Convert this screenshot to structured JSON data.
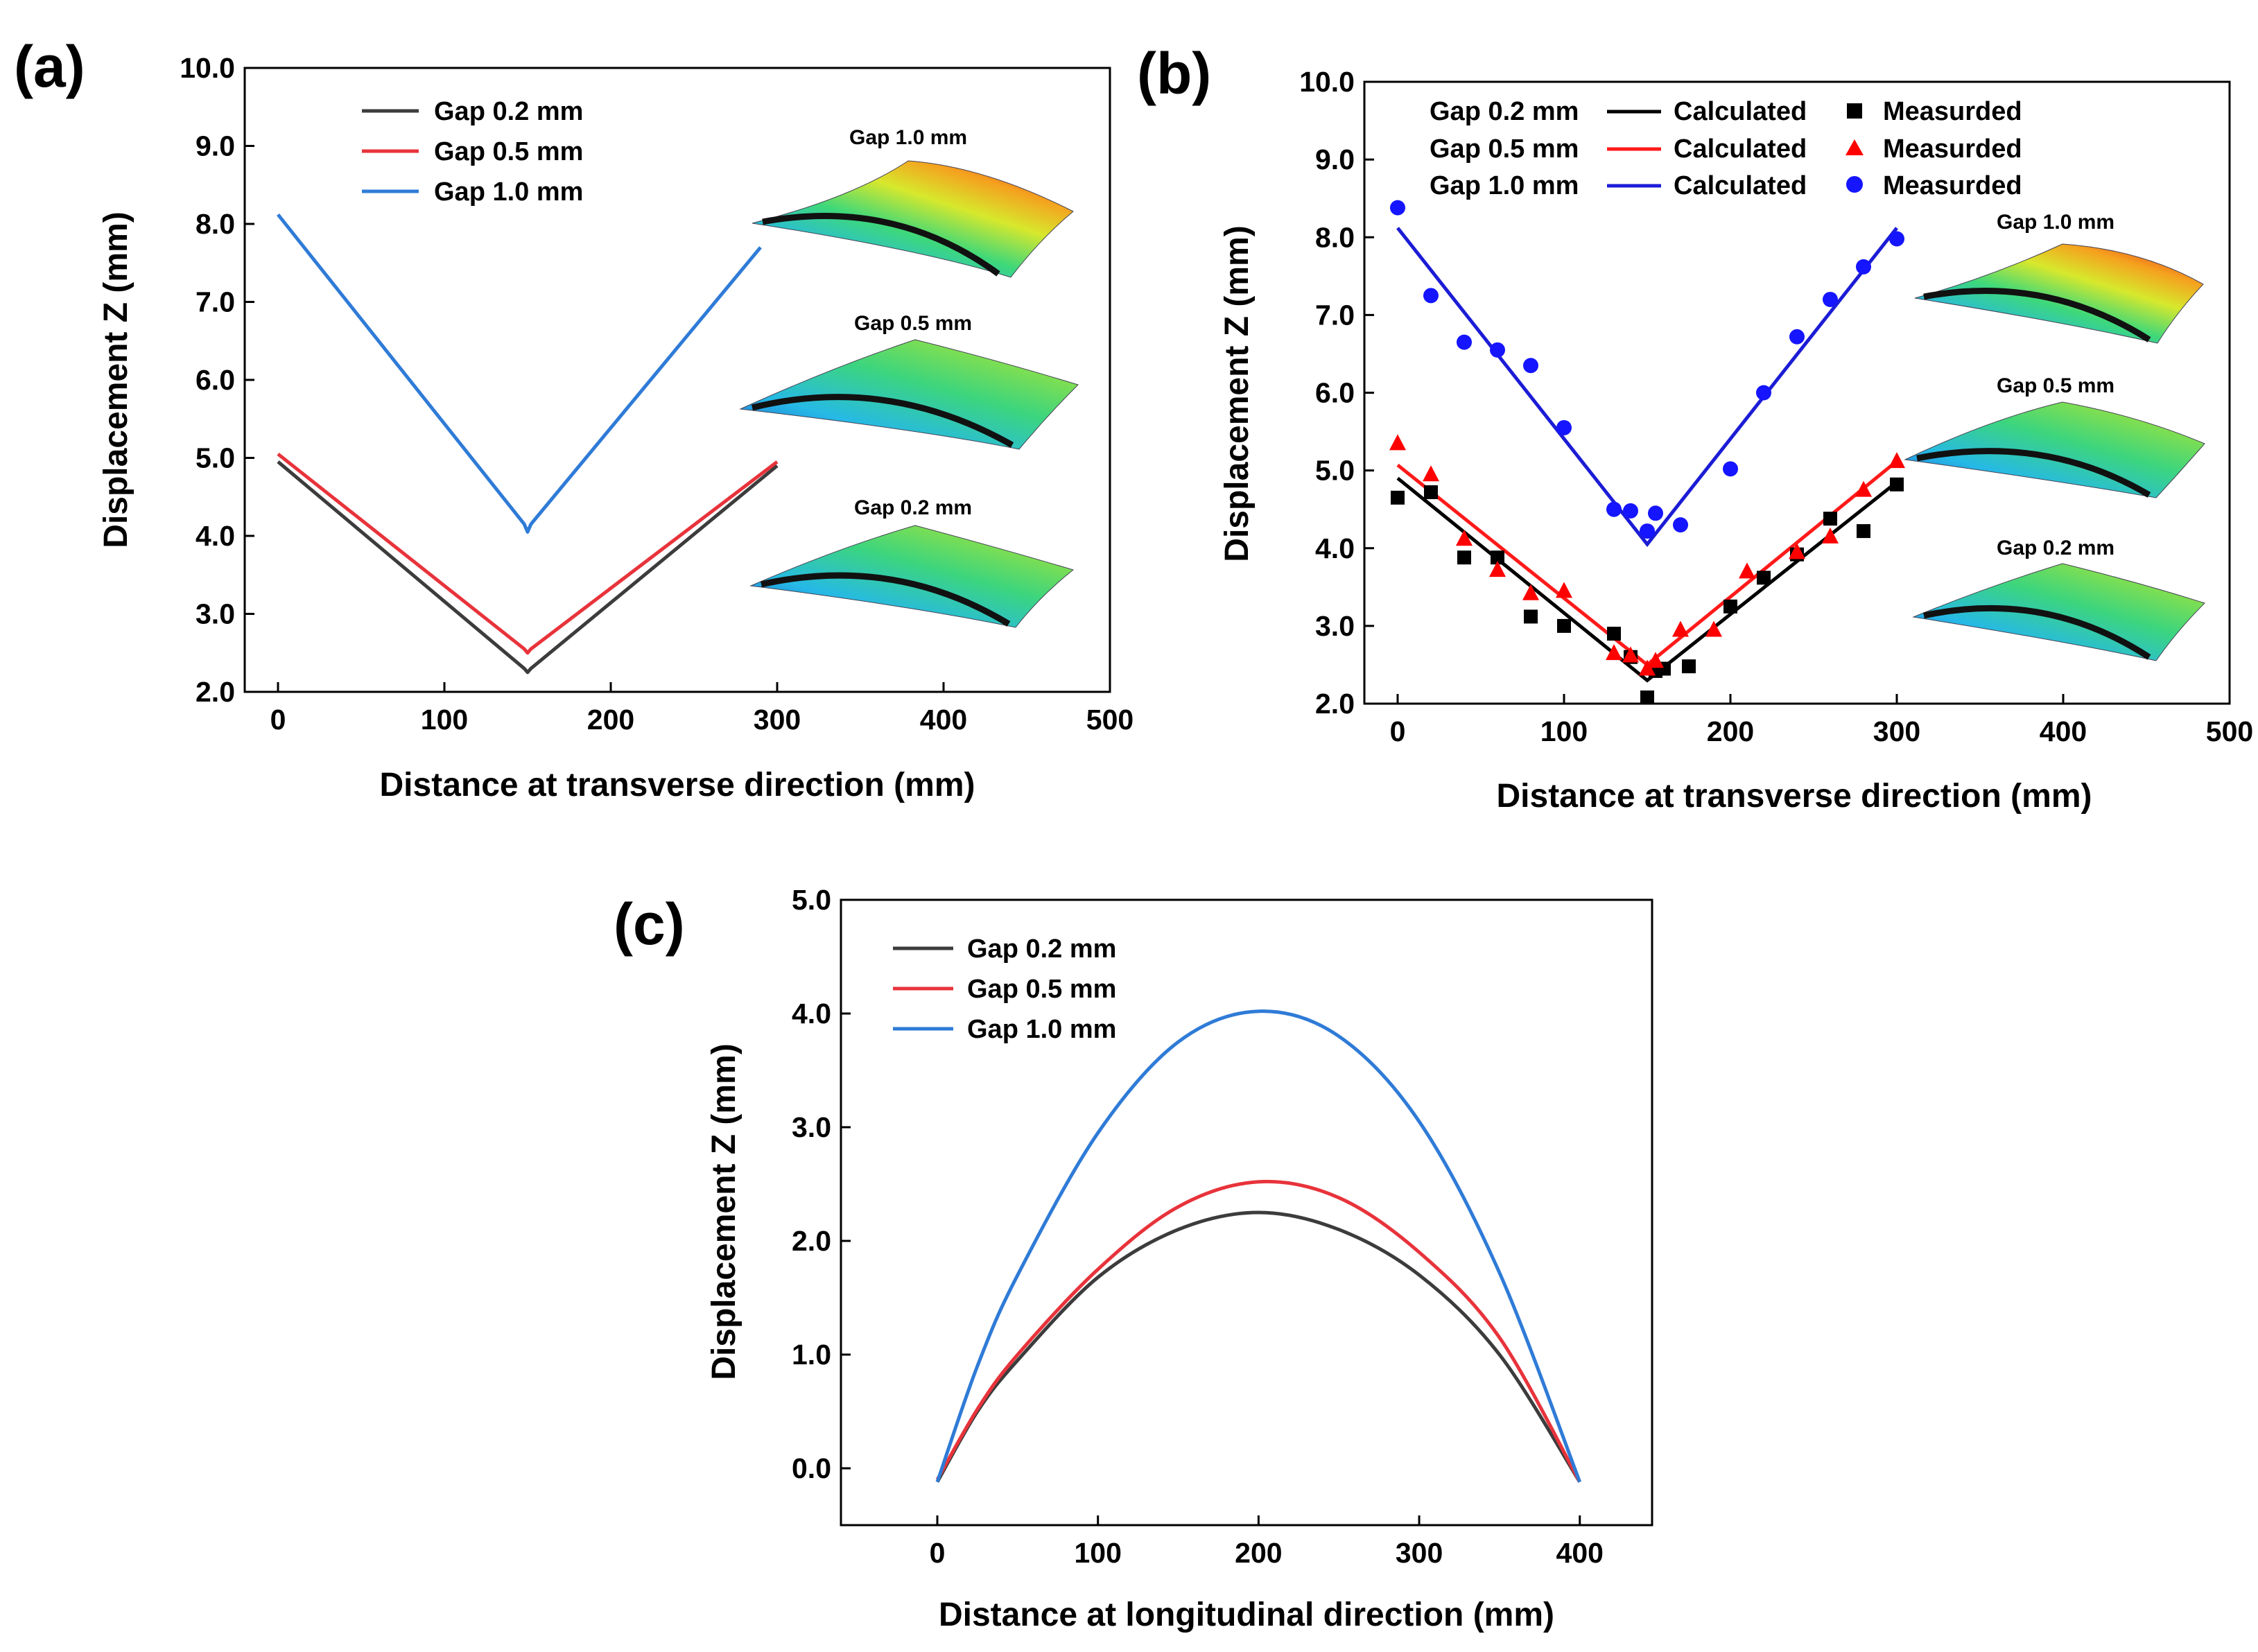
{
  "colors": {
    "gap_0_2": "#3c3c3c",
    "gap_0_5": "#e8333b",
    "gap_1_0": "#2f7bd7",
    "calc_0_2": "#000000",
    "calc_0_5": "#ff1a1a",
    "calc_1_0": "#1c1cd6",
    "meas_0_2": "#000000",
    "meas_0_5": "#ff0000",
    "meas_1_0": "#1515ff"
  },
  "inset_labels": [
    "Gap 1.0 mm",
    "Gap 0.5 mm",
    "Gap 0.2 mm"
  ],
  "chart_data": [
    {
      "panel_label": "(a)",
      "type": "line",
      "xlabel": "Distance at transverse direction (mm)",
      "ylabel": "Displacement Z (mm)",
      "xlim": [
        -20,
        500
      ],
      "ylim": [
        2.0,
        10.0
      ],
      "xticks": [
        "0",
        "100",
        "200",
        "300",
        "400",
        "500"
      ],
      "yticks": [
        "2.0",
        "3.0",
        "4.0",
        "5.0",
        "6.0",
        "7.0",
        "8.0",
        "9.0",
        "10.0"
      ],
      "series": [
        {
          "name": "Gap 0.2 mm",
          "x": [
            0,
            148,
            150,
            152,
            300
          ],
          "y": [
            4.95,
            2.3,
            2.25,
            2.3,
            4.9
          ]
        },
        {
          "name": "Gap 0.5 mm",
          "x": [
            0,
            148,
            150,
            152,
            300
          ],
          "y": [
            5.05,
            2.55,
            2.5,
            2.55,
            4.95
          ]
        },
        {
          "name": "Gap 1.0 mm",
          "x": [
            0,
            148,
            150,
            152,
            290
          ],
          "y": [
            8.12,
            4.15,
            4.05,
            4.15,
            7.7
          ]
        }
      ]
    },
    {
      "panel_label": "(b)",
      "type": "line",
      "xlabel": "Distance at transverse direction (mm)",
      "ylabel": "Displacement Z (mm)",
      "xlim": [
        -20,
        500
      ],
      "ylim": [
        2.0,
        10.0
      ],
      "xticks": [
        "0",
        "100",
        "200",
        "300",
        "400",
        "500"
      ],
      "yticks": [
        "2.0",
        "3.0",
        "4.0",
        "5.0",
        "6.0",
        "7.0",
        "8.0",
        "9.0",
        "10.0"
      ],
      "legend": [
        {
          "gap": "Gap 0.2 mm",
          "line_label": "Calculated",
          "marker_label": "Measurded",
          "marker": "square"
        },
        {
          "gap": "Gap 0.5 mm",
          "line_label": "Calculated",
          "marker_label": "Measurded",
          "marker": "triangle"
        },
        {
          "gap": "Gap 1.0 mm",
          "line_label": "Calculated",
          "marker_label": "Measurded",
          "marker": "circle"
        }
      ],
      "calculated": [
        {
          "name": "Gap 0.2 mm",
          "x": [
            0,
            150,
            300
          ],
          "y": [
            4.9,
            2.3,
            4.85
          ]
        },
        {
          "name": "Gap 0.5 mm",
          "x": [
            0,
            150,
            300
          ],
          "y": [
            5.07,
            2.5,
            5.12
          ]
        },
        {
          "name": "Gap 1.0 mm",
          "x": [
            0,
            150,
            300
          ],
          "y": [
            8.12,
            4.05,
            8.12
          ]
        }
      ],
      "measured": [
        {
          "name": "Gap 0.2 mm",
          "marker": "square",
          "x": [
            0,
            20,
            40,
            60,
            80,
            100,
            130,
            140,
            150,
            155,
            160,
            175,
            200,
            220,
            240,
            260,
            280,
            300
          ],
          "y": [
            4.65,
            4.72,
            3.88,
            3.88,
            3.12,
            3.0,
            2.9,
            2.6,
            2.08,
            2.42,
            2.45,
            2.48,
            3.25,
            3.62,
            3.92,
            4.38,
            4.22,
            4.82
          ]
        },
        {
          "name": "Gap 0.5 mm",
          "marker": "triangle",
          "x": [
            0,
            20,
            40,
            60,
            80,
            100,
            130,
            140,
            150,
            155,
            170,
            190,
            210,
            240,
            260,
            280,
            300
          ],
          "y": [
            5.35,
            4.95,
            4.12,
            3.72,
            3.42,
            3.45,
            2.65,
            2.62,
            2.45,
            2.55,
            2.95,
            2.95,
            3.7,
            3.95,
            4.15,
            4.75,
            5.12
          ]
        },
        {
          "name": "Gap 1.0 mm",
          "marker": "circle",
          "x": [
            0,
            20,
            40,
            60,
            80,
            100,
            130,
            140,
            150,
            155,
            170,
            200,
            220,
            240,
            260,
            280,
            300
          ],
          "y": [
            8.38,
            7.25,
            6.65,
            6.55,
            6.35,
            5.55,
            4.5,
            4.48,
            4.22,
            4.45,
            4.3,
            5.02,
            6.0,
            6.72,
            7.2,
            7.62,
            7.98
          ]
        }
      ]
    },
    {
      "panel_label": "(c)",
      "type": "line",
      "xlabel": "Distance at longitudinal direction (mm)",
      "ylabel": "Displacement Z (mm)",
      "xlim": [
        -60,
        445
      ],
      "ylim": [
        -0.5,
        5.0
      ],
      "xticks": [
        "0",
        "100",
        "200",
        "300",
        "400"
      ],
      "yticks": [
        "0.0",
        "1.0",
        "2.0",
        "3.0",
        "4.0",
        "5.0"
      ],
      "series": [
        {
          "name": "Gap 0.2 mm",
          "x": [
            0,
            25,
            50,
            100,
            150,
            200,
            250,
            300,
            350,
            400
          ],
          "y": [
            -0.12,
            0.5,
            0.95,
            1.68,
            2.1,
            2.25,
            2.1,
            1.7,
            1.0,
            -0.12
          ]
        },
        {
          "name": "Gap 0.5 mm",
          "x": [
            0,
            25,
            50,
            100,
            150,
            200,
            250,
            300,
            350,
            400
          ],
          "y": [
            -0.1,
            0.52,
            1.0,
            1.75,
            2.3,
            2.52,
            2.38,
            1.9,
            1.15,
            -0.12
          ]
        },
        {
          "name": "Gap 1.0 mm",
          "x": [
            0,
            25,
            50,
            100,
            150,
            200,
            250,
            300,
            350,
            400
          ],
          "y": [
            -0.12,
            0.9,
            1.7,
            2.95,
            3.75,
            4.02,
            3.8,
            3.05,
            1.72,
            -0.12
          ]
        }
      ]
    }
  ]
}
